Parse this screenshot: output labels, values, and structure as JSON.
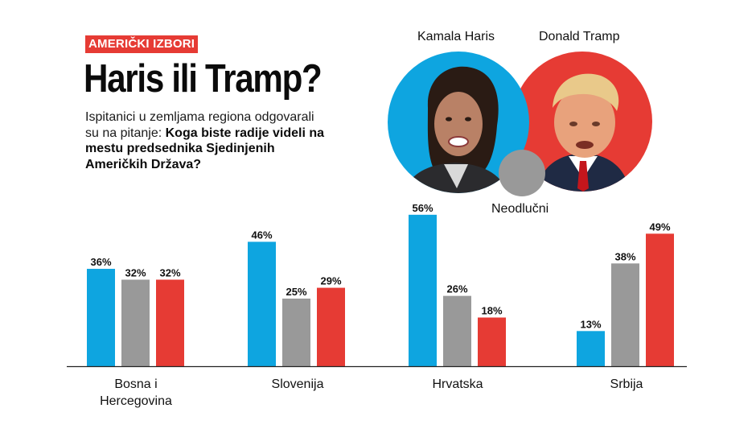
{
  "header": {
    "tag": "AMERIČKI IZBORI",
    "title": "Haris ili Tramp?",
    "subtitle_plain": "Ispitanici u zemljama regiona odgovarali su na pitanje: ",
    "subtitle_bold": "Koga biste radije videli na mestu predsednika Sjedinjenih Američkih Država?"
  },
  "legend": {
    "haris": "Kamala Haris",
    "tramp": "Donald Tramp",
    "neodlucni": "Neodlučni"
  },
  "colors": {
    "haris": "#0ea5e0",
    "neodlucni": "#999999",
    "tramp": "#e63b34",
    "accent": "#e63b34"
  },
  "chart_data": {
    "type": "bar",
    "title": "Haris ili Tramp?",
    "categories": [
      [
        "Bosna i",
        "Hercegovina"
      ],
      [
        "Slovenija"
      ],
      [
        "Hrvatska"
      ],
      [
        "Srbija"
      ]
    ],
    "series": [
      {
        "name": "Kamala Haris",
        "color": "#0ea5e0",
        "values": [
          36,
          46,
          56,
          13
        ]
      },
      {
        "name": "Neodlučni",
        "color": "#999999",
        "values": [
          32,
          25,
          26,
          38
        ]
      },
      {
        "name": "Donald Tramp",
        "color": "#e63b34",
        "values": [
          32,
          29,
          18,
          49
        ]
      }
    ],
    "labels": [
      [
        "36%",
        "46%",
        "56%",
        "13%"
      ],
      [
        "32%",
        "25%",
        "26%",
        "38%"
      ],
      [
        "32%",
        "29%",
        "18%",
        "49%"
      ]
    ],
    "unit": "%",
    "ylim": [
      0,
      56
    ],
    "grid": false,
    "legend": "top-right"
  }
}
